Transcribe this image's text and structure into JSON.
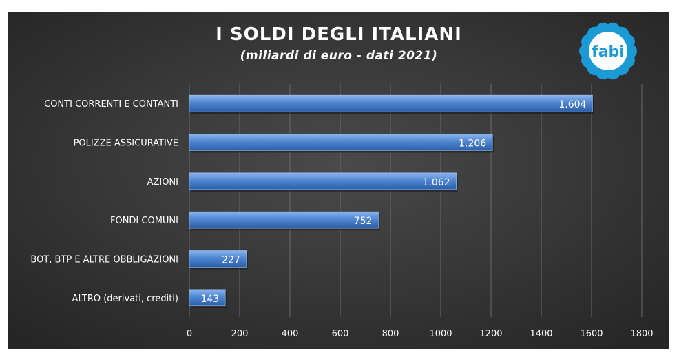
{
  "chart_data": {
    "type": "bar",
    "orientation": "horizontal",
    "title": "I SOLDI DEGLI ITALIANI",
    "subtitle": "(miliardi di euro - dati 2021)",
    "categories": [
      "CONTI CORRENTI E CONTANTI",
      "POLIZZE ASSICURATIVE",
      "AZIONI",
      "FONDI COMUNI",
      "BOT, BTP E ALTRE OBBLIGAZIONI",
      "ALTRO (derivati, crediti)"
    ],
    "values": [
      1604,
      1206,
      1062,
      752,
      227,
      143
    ],
    "value_labels": [
      "1.604",
      "1.206",
      "1.062",
      "752",
      "227",
      "143"
    ],
    "xlim": [
      0,
      1800
    ],
    "x_ticks": [
      "0",
      "200",
      "400",
      "600",
      "800",
      "1000",
      "1200",
      "1400",
      "1600",
      "1800"
    ],
    "grid": "vertical",
    "legend": "none"
  },
  "logo": {
    "text": "fabi"
  },
  "colors": {
    "background": "#3a3a3a",
    "bar": "#4f86d1",
    "grid": "#6a6a6a",
    "logo": "#1b9ad6"
  }
}
